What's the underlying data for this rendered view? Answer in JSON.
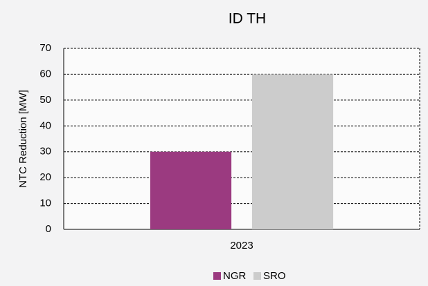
{
  "chart_data": {
    "type": "bar",
    "title": "ID TH",
    "y_label": "NTC Reduction [MW]",
    "categories": [
      "2023"
    ],
    "series": [
      {
        "name": "NGR",
        "color": "#9b3a80",
        "values": [
          30
        ]
      },
      {
        "name": "SRO",
        "color": "#cccccc",
        "values": [
          60
        ]
      }
    ],
    "ylim": [
      0,
      70
    ],
    "yticks": [
      0,
      10,
      20,
      30,
      40,
      50,
      60,
      70
    ],
    "grid": true,
    "legend": "bottom"
  }
}
